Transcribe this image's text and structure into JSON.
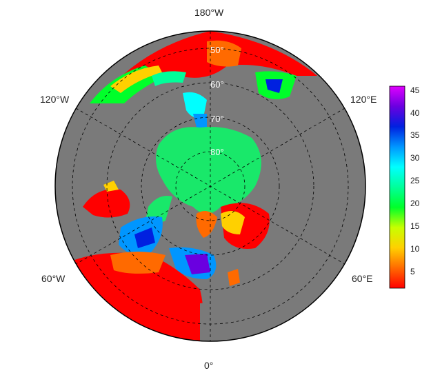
{
  "map": {
    "projection": "north-polar-stereographic",
    "lon_labels": {
      "top": "180°W",
      "bottom": "0°",
      "left_upper": "120°W",
      "left_lower": "60°W",
      "right_upper": "120°E",
      "right_lower": "60°E"
    },
    "lat_labels": [
      "50°",
      "60°",
      "70°",
      "80°"
    ],
    "colors": {
      "land": "#7a7a7a",
      "ocean_background": "#7a7a7a",
      "arctic_value_color": "#19e86a",
      "outline": "#000000",
      "graticule": "#000000"
    }
  },
  "colorbar": {
    "ticks": [
      "45",
      "40",
      "35",
      "30",
      "25",
      "20",
      "15",
      "10",
      "5"
    ],
    "range": [
      1,
      47
    ],
    "colors_low_to_high": [
      "#ff0000",
      "#ff6a00",
      "#ffd000",
      "#c8ff00",
      "#00ff2a",
      "#00ff9a",
      "#00ffff",
      "#0096ff",
      "#0020e0",
      "#6a00e0",
      "#e000ff"
    ]
  }
}
